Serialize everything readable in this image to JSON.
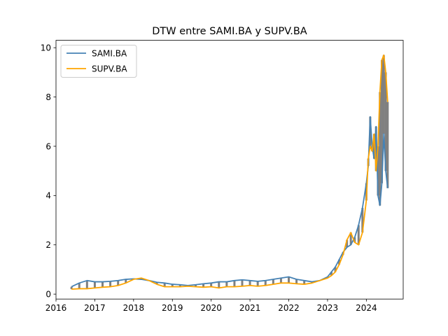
{
  "chart_data": {
    "type": "line",
    "title": "DTW entre SAMI.BA y SUPV.BA",
    "xlabel": "",
    "ylabel": "",
    "xlim": [
      2016.0,
      2024.95
    ],
    "ylim": [
      -0.2,
      10.3
    ],
    "xticks": [
      "2016",
      "2017",
      "2018",
      "2019",
      "2020",
      "2021",
      "2022",
      "2023",
      "2024"
    ],
    "yticks": [
      "0",
      "2",
      "4",
      "6",
      "8",
      "10"
    ],
    "grid": false,
    "legend_position": "top-left",
    "dtw_connection_color": "#808080",
    "series": [
      {
        "name": "SAMI.BA",
        "color": "#4682b4",
        "x": [
          2016.4,
          2016.6,
          2016.8,
          2017.0,
          2017.2,
          2017.4,
          2017.6,
          2017.8,
          2018.0,
          2018.2,
          2018.4,
          2018.6,
          2018.8,
          2019.0,
          2019.2,
          2019.4,
          2019.6,
          2019.8,
          2020.0,
          2020.2,
          2020.4,
          2020.6,
          2020.8,
          2021.0,
          2021.2,
          2021.4,
          2021.6,
          2021.8,
          2022.0,
          2022.2,
          2022.4,
          2022.6,
          2022.8,
          2023.0,
          2023.1,
          2023.2,
          2023.3,
          2023.4,
          2023.5,
          2023.6,
          2023.7,
          2023.8,
          2023.9,
          2024.0,
          2024.05,
          2024.1,
          2024.15,
          2024.2,
          2024.25,
          2024.3,
          2024.35,
          2024.4,
          2024.45,
          2024.5,
          2024.55
        ],
        "y": [
          0.3,
          0.45,
          0.55,
          0.5,
          0.5,
          0.52,
          0.55,
          0.6,
          0.62,
          0.6,
          0.55,
          0.48,
          0.45,
          0.4,
          0.38,
          0.35,
          0.38,
          0.42,
          0.45,
          0.5,
          0.5,
          0.55,
          0.58,
          0.55,
          0.52,
          0.55,
          0.6,
          0.65,
          0.7,
          0.6,
          0.55,
          0.5,
          0.55,
          0.7,
          0.9,
          1.1,
          1.4,
          1.7,
          1.9,
          2.0,
          2.3,
          2.8,
          3.5,
          4.5,
          5.2,
          7.2,
          6.0,
          5.5,
          6.8,
          4.0,
          3.6,
          4.5,
          6.5,
          5.0,
          4.3
        ]
      },
      {
        "name": "SUPV.BA",
        "color": "#ffa500",
        "x": [
          2016.4,
          2016.6,
          2016.8,
          2017.0,
          2017.2,
          2017.4,
          2017.6,
          2017.8,
          2018.0,
          2018.2,
          2018.4,
          2018.6,
          2018.8,
          2019.0,
          2019.2,
          2019.4,
          2019.6,
          2019.8,
          2020.0,
          2020.2,
          2020.4,
          2020.6,
          2020.8,
          2021.0,
          2021.2,
          2021.4,
          2021.6,
          2021.8,
          2022.0,
          2022.2,
          2022.4,
          2022.6,
          2022.8,
          2023.0,
          2023.1,
          2023.2,
          2023.3,
          2023.4,
          2023.5,
          2023.6,
          2023.7,
          2023.8,
          2023.9,
          2024.0,
          2024.05,
          2024.1,
          2024.15,
          2024.2,
          2024.25,
          2024.3,
          2024.35,
          2024.4,
          2024.45,
          2024.5,
          2024.55
        ],
        "y": [
          0.2,
          0.22,
          0.22,
          0.25,
          0.28,
          0.3,
          0.35,
          0.45,
          0.6,
          0.65,
          0.55,
          0.4,
          0.3,
          0.3,
          0.3,
          0.32,
          0.3,
          0.28,
          0.3,
          0.25,
          0.3,
          0.3,
          0.32,
          0.35,
          0.32,
          0.35,
          0.4,
          0.45,
          0.45,
          0.42,
          0.4,
          0.45,
          0.55,
          0.65,
          0.75,
          0.9,
          1.2,
          1.6,
          2.2,
          2.5,
          2.1,
          2.0,
          2.5,
          3.8,
          5.5,
          6.0,
          5.8,
          6.5,
          5.0,
          6.0,
          8.2,
          9.5,
          9.7,
          9.0,
          7.8
        ]
      }
    ]
  }
}
